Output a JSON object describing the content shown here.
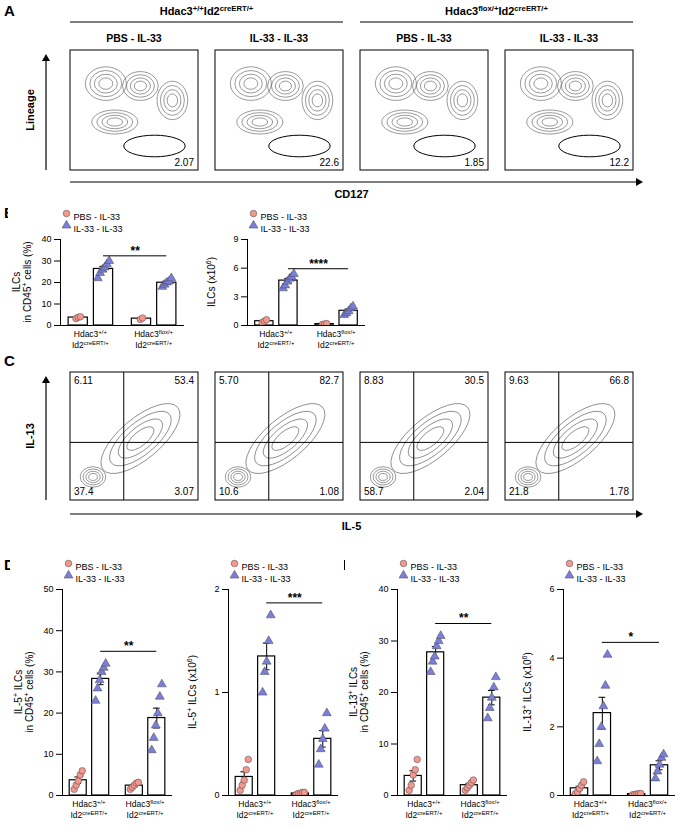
{
  "panel_letters": [
    "A",
    "B",
    "C",
    "D",
    "E"
  ],
  "genotypes": [
    {
      "gene1": "Hdac3",
      "sup1": "+/+",
      "gene2": "Id2",
      "sup2": "creERT/+"
    },
    {
      "gene1": "Hdac3",
      "sup1": "flox/+",
      "gene2": "Id2",
      "sup2": "creERT/+"
    }
  ],
  "conditions": [
    "PBS - IL-33",
    "IL-33 - IL-33"
  ],
  "flow_A": {
    "xlabel": "CD127",
    "ylabel": "Lineage",
    "gates": [
      2.07,
      22.6,
      1.85,
      12.2
    ]
  },
  "flow_C": {
    "xlabel": "IL-5",
    "ylabel": "IL-13",
    "quadrants": [
      {
        "ul": 6.11,
        "ur": 53.4,
        "ll": 37.4,
        "lr": 3.07
      },
      {
        "ul": {
          "value": 5.7,
          "label": "5.70"
        },
        "ur": 82.7,
        "ll": 10.6,
        "lr": 1.08
      },
      {
        "ul": 8.83,
        "ur": 30.5,
        "ll": 58.7,
        "lr": 2.04
      },
      {
        "ul": 9.63,
        "ur": 66.8,
        "ll": 21.8,
        "lr": 1.78
      }
    ]
  },
  "chart_data": [
    {
      "type": "bar",
      "ylabel": [
        [
          {
            "t": "ILCs"
          }
        ],
        [
          {
            "t": "in CD45"
          },
          {
            "t": "+",
            "sup": true
          },
          {
            "t": " cells (%)"
          }
        ]
      ],
      "ylim": [
        0,
        40
      ],
      "yticks": [
        0,
        10,
        20,
        30,
        40
      ],
      "significance": "**",
      "series": [
        {
          "name": "PBS - IL-33",
          "color": "#f4978e",
          "marker": "circle",
          "values": [
            3.7,
            3.2
          ],
          "errors": [
            0.3,
            0.35
          ],
          "points": [
            [
              3.2,
              3.8,
              4.1
            ],
            [
              2.8,
              3.5
            ]
          ]
        },
        {
          "name": "IL-33 - IL-33",
          "color": "#7b7fdc",
          "marker": "triangle",
          "values": [
            26.3,
            19.9
          ],
          "errors": [
            1.2,
            0.7
          ],
          "points": [
            [
              22,
              24.5,
              26,
              27,
              28.5,
              30
            ],
            [
              18,
              19,
              20,
              20.5,
              22
            ]
          ]
        }
      ]
    },
    {
      "type": "bar",
      "ylabel": [
        [
          {
            "t": "ILCs (x10"
          },
          {
            "t": "6",
            "sup": true
          },
          {
            "t": ")"
          }
        ]
      ],
      "ylim": [
        0,
        9
      ],
      "yticks": [
        0,
        3,
        6,
        9
      ],
      "significance": "****",
      "series": [
        {
          "name": "PBS - IL-33",
          "color": "#f4978e",
          "marker": "circle",
          "values": [
            0.45,
            0.15
          ],
          "errors": [
            0.09,
            0.03
          ],
          "points": [
            [
              0.3,
              0.45,
              0.6
            ],
            [
              0.1,
              0.15,
              0.2
            ]
          ]
        },
        {
          "name": "IL-33 - IL-33",
          "color": "#7b7fdc",
          "marker": "triangle",
          "values": [
            4.7,
            1.54
          ],
          "errors": [
            0.23,
            0.17
          ],
          "points": [
            [
              3.9,
              4.2,
              4.6,
              4.9,
              5.1,
              5.4
            ],
            [
              1.1,
              1.3,
              1.5,
              1.8,
              2.0
            ]
          ]
        }
      ]
    },
    {
      "type": "bar",
      "ylabel": [
        [
          {
            "t": "IL-5"
          },
          {
            "t": "+",
            "sup": true
          },
          {
            "t": " ILCs"
          }
        ],
        [
          {
            "t": "in CD45"
          },
          {
            "t": "+",
            "sup": true
          },
          {
            "t": " cells (%)"
          }
        ]
      ],
      "ylim": [
        0,
        50
      ],
      "yticks": [
        0,
        10,
        20,
        30,
        40,
        50
      ],
      "significance": "**",
      "series": [
        {
          "name": "PBS - IL-33",
          "color": "#f4978e",
          "marker": "circle",
          "values": [
            3.7,
            2.4
          ],
          "errors": [
            0.8,
            0.3
          ],
          "points": [
            [
              1.5,
              2.5,
              3.5,
              5,
              6
            ],
            [
              1.5,
              2,
              2.5,
              3,
              3.2
            ]
          ]
        },
        {
          "name": "IL-33 - IL-33",
          "color": "#7b7fdc",
          "marker": "triangle",
          "values": [
            28.3,
            18.8
          ],
          "errors": [
            1.4,
            2.4
          ],
          "points": [
            [
              23,
              26,
              28,
              30,
              31,
              32
            ],
            [
              11,
              14,
              17,
              20,
              24,
              27
            ]
          ]
        }
      ]
    },
    {
      "type": "bar",
      "ylabel": [
        [
          {
            "t": "IL-5"
          },
          {
            "t": "+",
            "sup": true
          },
          {
            "t": " ILCs (x10"
          },
          {
            "t": "6",
            "sup": true
          },
          {
            "t": ")"
          }
        ]
      ],
      "ylim": [
        0,
        2
      ],
      "yticks": [
        0,
        1,
        2
      ],
      "significance": "***",
      "series": [
        {
          "name": "PBS - IL-33",
          "color": "#f4978e",
          "marker": "circle",
          "values": [
            0.18,
            0.02
          ],
          "errors": [
            0.05,
            0.004
          ],
          "points": [
            [
              0.05,
              0.1,
              0.15,
              0.25,
              0.35
            ],
            [
              0.01,
              0.02,
              0.02,
              0.03,
              0.03
            ]
          ]
        },
        {
          "name": "IL-33 - IL-33",
          "color": "#7b7fdc",
          "marker": "triangle",
          "values": [
            1.35,
            0.55
          ],
          "errors": [
            0.13,
            0.08
          ],
          "points": [
            [
              1.0,
              1.2,
              1.3,
              1.5,
              1.75
            ],
            [
              0.3,
              0.45,
              0.55,
              0.65,
              0.8
            ]
          ]
        }
      ]
    },
    {
      "type": "bar",
      "ylabel": [
        [
          {
            "t": "IL-13"
          },
          {
            "t": "+",
            "sup": true
          },
          {
            "t": " ILCs"
          }
        ],
        [
          {
            "t": "in CD45"
          },
          {
            "t": "+",
            "sup": true
          },
          {
            "t": " cells (%)"
          }
        ]
      ],
      "ylim": [
        0,
        40
      ],
      "yticks": [
        0,
        10,
        20,
        30,
        40
      ],
      "significance": "**",
      "series": [
        {
          "name": "PBS - IL-33",
          "color": "#f4978e",
          "marker": "circle",
          "values": [
            3.8,
            2.0
          ],
          "errors": [
            1.0,
            0.35
          ],
          "points": [
            [
              1,
              2,
              4,
              5,
              7
            ],
            [
              1,
              1.5,
              2,
              2.5,
              3
            ]
          ]
        },
        {
          "name": "IL-33 - IL-33",
          "color": "#7b7fdc",
          "marker": "triangle",
          "values": [
            27.8,
            19
          ],
          "errors": [
            1.1,
            1.4
          ],
          "points": [
            [
              24,
              26,
              27,
              29,
              30,
              31
            ],
            [
              15,
              17,
              19,
              21,
              23
            ]
          ]
        }
      ]
    },
    {
      "type": "bar",
      "ylabel": [
        [
          {
            "t": "IL-13"
          },
          {
            "t": "+",
            "sup": true
          },
          {
            "t": " ILCs (x10"
          },
          {
            "t": "6",
            "sup": true
          },
          {
            "t": ")"
          }
        ]
      ],
      "ylim": [
        0,
        6
      ],
      "yticks": [
        0,
        2,
        4,
        6
      ],
      "significance": "*",
      "series": [
        {
          "name": "PBS - IL-33",
          "color": "#f4978e",
          "marker": "circle",
          "values": [
            0.21,
            0.04
          ],
          "errors": [
            0.06,
            0.01
          ],
          "points": [
            [
              0.05,
              0.1,
              0.2,
              0.3,
              0.4
            ],
            [
              0.02,
              0.03,
              0.04,
              0.05,
              0.06
            ]
          ]
        },
        {
          "name": "IL-33 - IL-33",
          "color": "#7b7fdc",
          "marker": "triangle",
          "values": [
            2.4,
            0.88
          ],
          "errors": [
            0.46,
            0.13
          ],
          "points": [
            [
              1.0,
              1.5,
              2.0,
              2.6,
              3.2,
              4.1
            ],
            [
              0.5,
              0.7,
              0.9,
              1.1,
              1.2
            ]
          ]
        }
      ]
    }
  ]
}
